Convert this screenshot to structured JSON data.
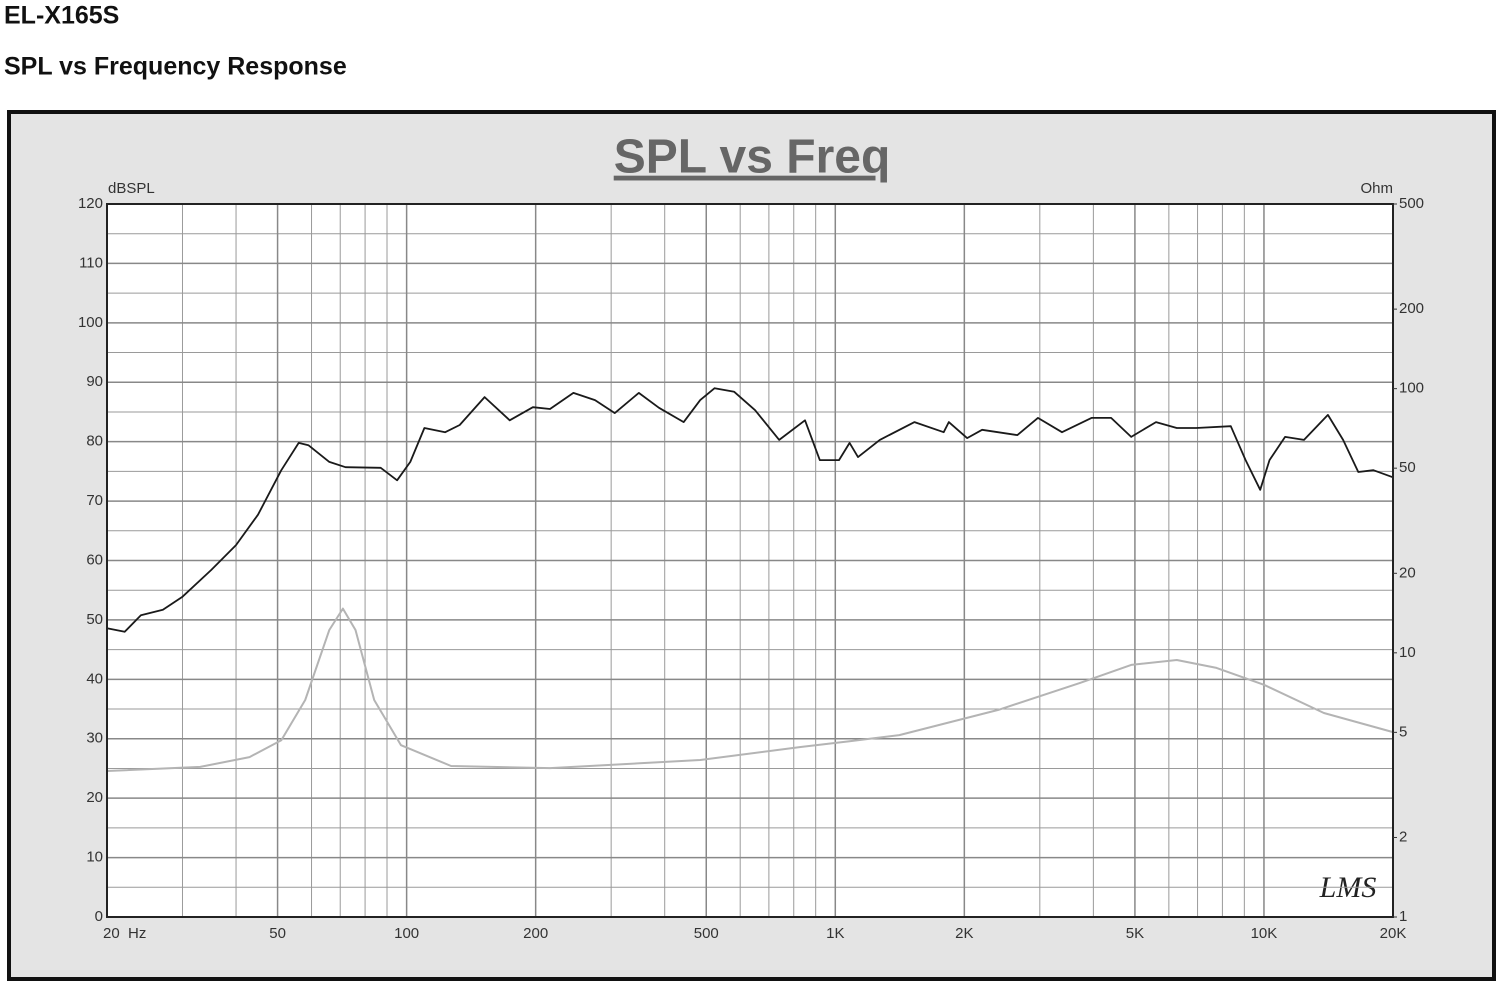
{
  "page_title": "EL-X165S",
  "page_subtitle": "SPL vs Frequency Response",
  "chart_data": {
    "type": "line",
    "title": "SPL vs Freq",
    "ylabel": "dBSPL",
    "y2label": "Ohm",
    "logo": "LMS",
    "xscale": "log",
    "y2scale": "log",
    "grid": true,
    "xlim": [
      20,
      20000
    ],
    "ylim": [
      0,
      120
    ],
    "y2lim": [
      1,
      500
    ],
    "xticks": [
      {
        "value": 20,
        "label": "20  Hz"
      },
      50,
      100,
      200,
      500,
      {
        "value": 1000,
        "label": "1K"
      },
      {
        "value": 2000,
        "label": "2K"
      },
      {
        "value": 5000,
        "label": "5K"
      },
      {
        "value": 10000,
        "label": "10K"
      },
      {
        "value": 20000,
        "label": "20K"
      }
    ],
    "x_minor_grid": [
      30,
      40,
      60,
      70,
      80,
      90,
      300,
      400,
      600,
      700,
      800,
      900,
      3000,
      4000,
      6000,
      7000,
      8000,
      9000
    ],
    "yticks": [
      0,
      10,
      20,
      30,
      40,
      50,
      60,
      70,
      80,
      90,
      100,
      110,
      120
    ],
    "y_minor_grid": [
      5,
      15,
      25,
      35,
      45,
      55,
      65,
      75,
      85,
      95,
      105,
      115
    ],
    "y2ticks": [
      1,
      2,
      5,
      10,
      20,
      50,
      100,
      200,
      500
    ],
    "series": [
      {
        "color": "#1a1a1a",
        "x": [
          20,
          22,
          24,
          27,
          30,
          35,
          40,
          45,
          51,
          56,
          59,
          66,
          72,
          87,
          95,
          102,
          110,
          123,
          133,
          152,
          174,
          197,
          216,
          245,
          275,
          306,
          348,
          388,
          443,
          484,
          523,
          581,
          650,
          740,
          850,
          920,
          1020,
          1080,
          1130,
          1270,
          1530,
          1790,
          1840,
          2030,
          2200,
          2660,
          2970,
          3380,
          3960,
          4400,
          4900,
          5600,
          6260,
          6950,
          8370,
          9060,
          9800,
          10300,
          11200,
          12400,
          14100,
          15300,
          16600,
          18000,
          20000
        ],
        "values": [
          48.6,
          48,
          50.8,
          51.7,
          53.9,
          58.4,
          62.6,
          67.7,
          75.2,
          79.8,
          79.4,
          76.6,
          75.7,
          75.6,
          73.5,
          76.6,
          82.3,
          81.6,
          82.8,
          87.5,
          83.6,
          85.8,
          85.5,
          88.2,
          87,
          84.8,
          88.2,
          85.7,
          83.3,
          87,
          89,
          88.4,
          85.3,
          80.3,
          83.6,
          76.9,
          76.9,
          79.8,
          77.4,
          80.3,
          83.3,
          81.6,
          83.3,
          80.6,
          82,
          81.1,
          84,
          81.6,
          84,
          84,
          80.8,
          83.3,
          82.3,
          82.3,
          82.6,
          76.9,
          71.9,
          76.9,
          80.8,
          80.3,
          84.5,
          80.3,
          74.9,
          75.2,
          74
        ]
      },
      {
        "color": "#b4b4b4",
        "axis": "y2",
        "x": [
          20,
          33,
          43,
          51,
          58,
          66,
          71,
          76,
          84,
          97,
          127,
          216,
          484,
          830,
          1080,
          1410,
          2400,
          3730,
          4900,
          6260,
          7750,
          10000,
          13800,
          20000
        ],
        "values": [
          3.57,
          3.7,
          4.03,
          4.67,
          6.63,
          12.2,
          14.7,
          12.2,
          6.63,
          4.47,
          3.73,
          3.66,
          3.93,
          4.4,
          4.63,
          4.88,
          6.08,
          7.7,
          9.0,
          9.39,
          8.77,
          7.57,
          5.92,
          5.01
        ]
      }
    ]
  }
}
